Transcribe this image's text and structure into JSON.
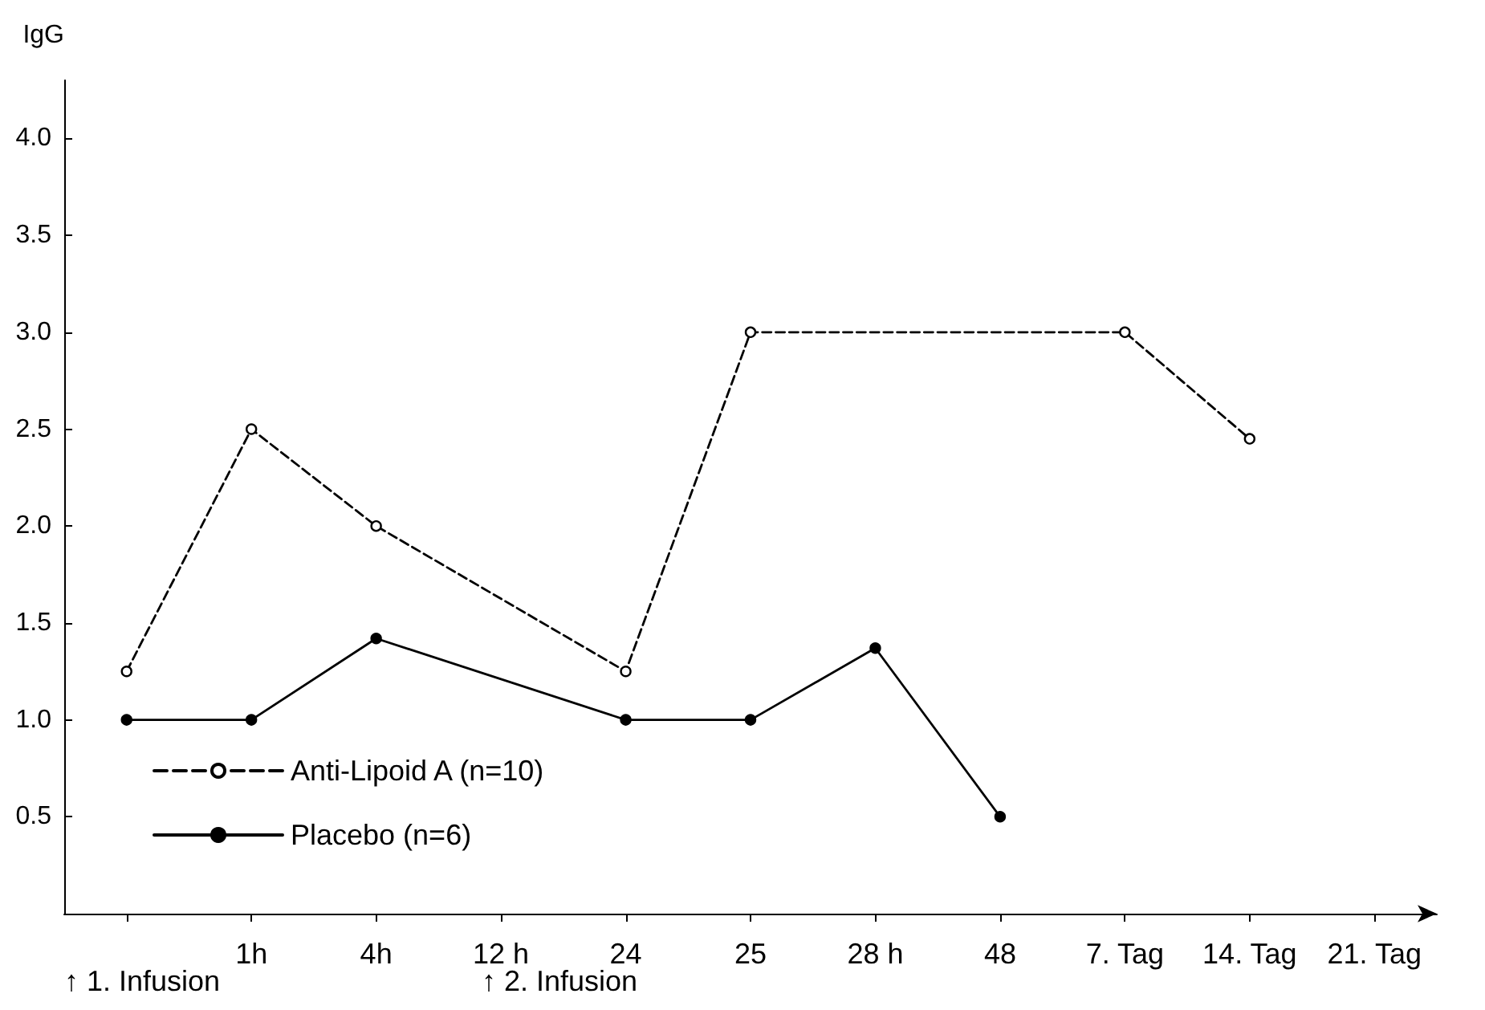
{
  "chart_data": {
    "type": "line",
    "ylabel": "IgG",
    "categories": [
      null,
      "1h",
      "4h",
      "12 h",
      "24",
      "25",
      "28 h",
      "48",
      "7. Tag",
      "14. Tag",
      "21. Tag"
    ],
    "series": [
      {
        "name": "Anti-Lipoid A (n=10)",
        "color": "#000000",
        "line_style": "dashed",
        "values": [
          1.25,
          2.5,
          2.0,
          null,
          1.25,
          3.0,
          null,
          null,
          3.0,
          2.45,
          null
        ]
      },
      {
        "name": "Placebo (n=6)",
        "color": "#000000",
        "line_style": "solid",
        "values": [
          1.0,
          1.0,
          1.42,
          null,
          1.0,
          1.0,
          1.37,
          0.5,
          null,
          null,
          null
        ]
      }
    ],
    "ylim": [
      0,
      4.3
    ],
    "yticks": [
      {
        "value": 0.5,
        "label": "0.5"
      },
      {
        "value": 1,
        "label": "1.0"
      },
      {
        "value": 1.5,
        "label": "1.5"
      },
      {
        "value": 2,
        "label": "2.0"
      },
      {
        "value": 2.5,
        "label": "2.5"
      },
      {
        "value": 3,
        "label": "3.0"
      },
      {
        "value": 3.5,
        "label": "3.5"
      },
      {
        "value": 4,
        "label": "4.0"
      }
    ],
    "grid": false,
    "legend": "bottom left",
    "marker": "circle",
    "annotations": [
      "↑ 1. Infusion",
      "↑ 2. Infusion"
    ]
  }
}
